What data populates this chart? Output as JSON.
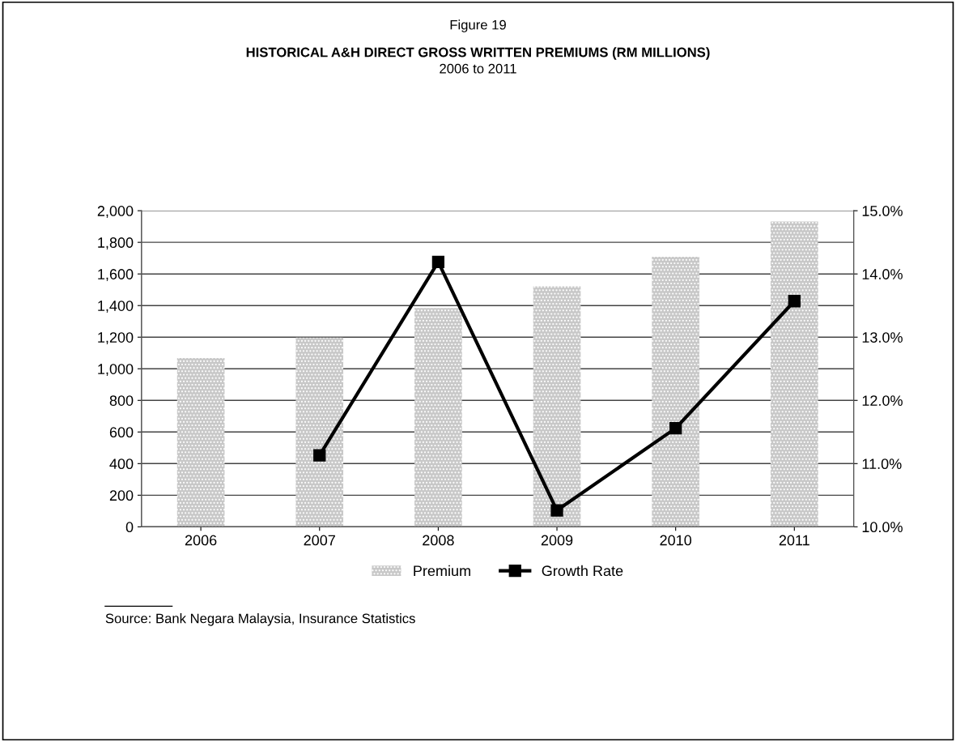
{
  "chart_data": {
    "type": "bar",
    "title": "Figure 19",
    "subtitle": "HISTORICAL A&H DIRECT GROSS WRITTEN PREMIUMS (RM MILLIONS)",
    "annotations": [
      "2006 to 2011",
      "Source: Bank Negara Malaysia, Insurance Statistics"
    ],
    "categories": [
      "2006",
      "2007",
      "2008",
      "2009",
      "2010",
      "2011"
    ],
    "series": [
      {
        "name": "Premium",
        "color": "#c8c8c8",
        "values": [
          1068,
          1197,
          1385,
          1522,
          1709,
          1932
        ]
      },
      {
        "name": "Growth Rate",
        "type": "line",
        "axis": "y2",
        "color": "#000000",
        "marker": "square",
        "values": [
          null,
          11.13,
          14.19,
          10.26,
          11.56,
          13.57
        ]
      }
    ],
    "ylim": [
      0,
      2000
    ],
    "yticks": [
      0,
      {
        "value": 200,
        "label": "200"
      },
      {
        "value": 400,
        "label": "400"
      },
      {
        "value": 600,
        "label": "600"
      },
      {
        "value": 800,
        "label": "800"
      },
      {
        "value": 1000,
        "label": "1,000"
      },
      {
        "value": 1200,
        "label": "1,200"
      },
      {
        "value": 1400,
        "label": "1,400"
      },
      {
        "value": 1600,
        "label": "1,600"
      },
      {
        "value": 1800,
        "label": "1,800"
      },
      {
        "value": 2000,
        "label": "2,000"
      }
    ],
    "y2lim": [
      10,
      15
    ],
    "y2ticks": [
      {
        "value": 10,
        "label": "10.0%"
      },
      {
        "value": 11,
        "label": "11.0%"
      },
      {
        "value": 12,
        "label": "12.0%"
      },
      {
        "value": 13,
        "label": "13.0%"
      },
      {
        "value": 14,
        "label": "14.0%"
      },
      {
        "value": 15,
        "label": "15.0%"
      }
    ],
    "grid": "y",
    "legend": "bottom"
  }
}
